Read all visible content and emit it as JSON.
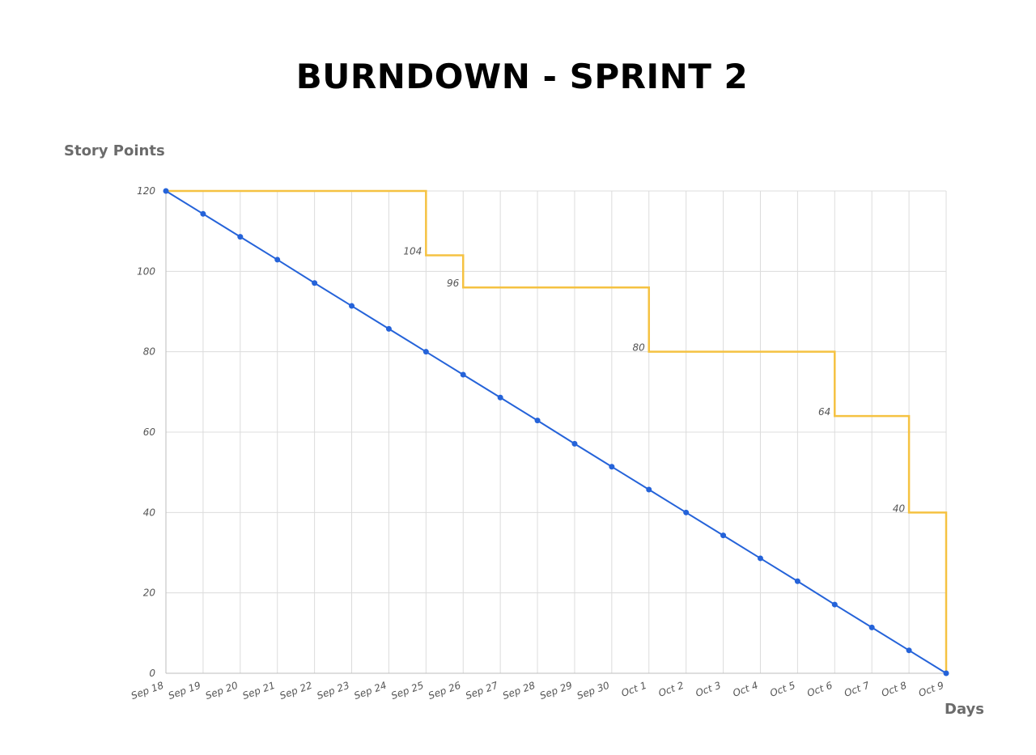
{
  "chart_data": {
    "type": "line",
    "title": "BURNDOWN - SPRINT 2",
    "ylabel": "Story Points",
    "xlabel": "Days",
    "categories": [
      "Sep 18",
      "Sep 19",
      "Sep 20",
      "Sep 21",
      "Sep 22",
      "Sep 23",
      "Sep 24",
      "Sep 25",
      "Sep 26",
      "Sep 27",
      "Sep 28",
      "Sep 29",
      "Sep 30",
      "Oct 1",
      "Oct 2",
      "Oct 3",
      "Oct 4",
      "Oct 5",
      "Oct 6",
      "Oct 7",
      "Oct 8",
      "Oct 9"
    ],
    "ylim": [
      0,
      120
    ],
    "yticks": [
      0,
      20,
      40,
      60,
      80,
      100,
      120
    ],
    "grid": true,
    "series": [
      {
        "style": "line-with-markers",
        "color": "#2563d9",
        "values": [
          120,
          114.3,
          108.6,
          102.9,
          97.1,
          91.4,
          85.7,
          80,
          74.3,
          68.6,
          62.9,
          57.1,
          51.4,
          45.7,
          40,
          34.3,
          28.6,
          22.9,
          17.1,
          11.4,
          5.7,
          0
        ]
      },
      {
        "style": "step",
        "color": "#f5c242",
        "values": [
          120,
          120,
          120,
          120,
          120,
          120,
          120,
          104,
          96,
          96,
          96,
          96,
          96,
          80,
          80,
          80,
          80,
          80,
          64,
          64,
          40,
          0
        ],
        "data_labels": [
          {
            "index": 7,
            "text": "104"
          },
          {
            "index": 8,
            "text": "96"
          },
          {
            "index": 13,
            "text": "80"
          },
          {
            "index": 18,
            "text": "64"
          },
          {
            "index": 20,
            "text": "40"
          }
        ]
      }
    ]
  }
}
